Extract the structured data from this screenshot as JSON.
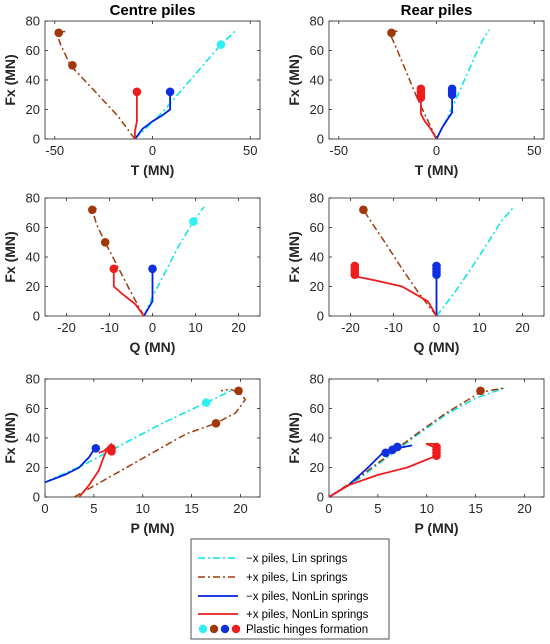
{
  "chart_data": [
    {
      "type": "line",
      "title": "Centre piles",
      "xlabel": "T (MN)",
      "ylabel": "Fx (MN)",
      "xlim": [
        -55,
        55
      ],
      "ylim": [
        0,
        80
      ],
      "xticks": [
        "-50",
        "0",
        "50"
      ],
      "yticks": [
        "0",
        "20",
        "40",
        "60",
        "80"
      ],
      "series": [
        {
          "name": "−x piles, Lin springs",
          "x": [
            -9,
            5,
            20,
            35,
            43
          ],
          "y": [
            0,
            18,
            41,
            64,
            74
          ],
          "markers": [
            [
              35,
              64
            ]
          ]
        },
        {
          "name": "+x piles, Lin springs",
          "x": [
            -9,
            -18,
            -30,
            -42,
            -47,
            -49,
            -44
          ],
          "y": [
            0,
            16,
            33,
            50,
            64,
            72,
            73
          ],
          "markers": [
            [
              -48,
              72
            ],
            [
              -41,
              50
            ]
          ]
        },
        {
          "name": "−x piles, NonLin springs",
          "x": [
            -9,
            -5,
            0,
            5,
            9,
            9,
            9
          ],
          "y": [
            0,
            7,
            12,
            16,
            20,
            27,
            32
          ],
          "markers": [
            [
              9,
              32
            ]
          ]
        },
        {
          "name": "+x piles, NonLin springs",
          "x": [
            -9,
            -9,
            -8,
            -8,
            -8,
            -8
          ],
          "y": [
            0,
            5,
            12,
            20,
            27,
            33
          ],
          "markers": [
            [
              -8,
              32
            ]
          ]
        }
      ]
    },
    {
      "type": "line",
      "title": "Rear piles",
      "xlabel": "T (MN)",
      "ylabel": "Fx (MN)",
      "xlim": [
        -55,
        55
      ],
      "ylim": [
        0,
        80
      ],
      "xticks": [
        "-50",
        "0",
        "50"
      ],
      "yticks": [
        "0",
        "20",
        "40",
        "60",
        "80"
      ],
      "series": [
        {
          "name": "−x piles, Lin springs",
          "x": [
            0,
            5,
            10,
            15,
            20,
            24,
            27
          ],
          "y": [
            0,
            13,
            27,
            42,
            57,
            68,
            74
          ],
          "markers": []
        },
        {
          "name": "+x piles, Lin springs",
          "x": [
            0,
            -5,
            -10,
            -15,
            -20,
            -24,
            -23,
            -20
          ],
          "y": [
            0,
            14,
            28,
            44,
            60,
            72,
            73,
            73
          ],
          "markers": [
            [
              -23,
              72
            ]
          ]
        },
        {
          "name": "−x piles, NonLin springs",
          "x": [
            0,
            3,
            6,
            8,
            8,
            8
          ],
          "y": [
            0,
            8,
            14,
            18,
            27,
            34
          ],
          "markers": [
            [
              8,
              30
            ],
            [
              8,
              32
            ],
            [
              8,
              34
            ]
          ]
        },
        {
          "name": "+x piles, NonLin springs",
          "x": [
            0,
            -3,
            -6,
            -8,
            -8,
            -8
          ],
          "y": [
            0,
            7,
            12,
            17,
            27,
            34
          ],
          "markers": [
            [
              -8,
              28
            ],
            [
              -8,
              30
            ],
            [
              -8,
              32
            ],
            [
              -8,
              34
            ]
          ]
        }
      ]
    },
    {
      "type": "line",
      "title": "",
      "xlabel": "Q (MN)",
      "ylabel": "Fx (MN)",
      "xlim": [
        -25,
        25
      ],
      "ylim": [
        0,
        80
      ],
      "xticks": [
        "-20",
        "-10",
        "0",
        "10",
        "20"
      ],
      "yticks": [
        "0",
        "20",
        "40",
        "60",
        "80"
      ],
      "series": [
        {
          "name": "−x piles, Lin springs",
          "x": [
            -2,
            0,
            3,
            6,
            9.5,
            12
          ],
          "y": [
            0,
            13,
            30,
            47,
            64,
            74
          ],
          "markers": [
            [
              9.5,
              64
            ]
          ]
        },
        {
          "name": "+x piles, Lin springs",
          "x": [
            -2,
            -5,
            -8,
            -11,
            -13,
            -14,
            -13
          ],
          "y": [
            0,
            16,
            33,
            50,
            62,
            72,
            73
          ],
          "markers": [
            [
              -14,
              72
            ],
            [
              -11,
              50
            ]
          ]
        },
        {
          "name": "−x piles, NonLin springs",
          "x": [
            -2,
            -1,
            0,
            0,
            0
          ],
          "y": [
            0,
            5,
            10,
            20,
            33
          ],
          "markers": [
            [
              0,
              32
            ]
          ]
        },
        {
          "name": "+x piles, NonLin springs",
          "x": [
            -2,
            -4,
            -7,
            -9,
            -9,
            -9
          ],
          "y": [
            0,
            8,
            15,
            20,
            27,
            33
          ],
          "markers": [
            [
              -9,
              32
            ]
          ]
        }
      ]
    },
    {
      "type": "line",
      "title": "",
      "xlabel": "Q (MN)",
      "ylabel": "Fx (MN)",
      "xlim": [
        -25,
        25
      ],
      "ylim": [
        0,
        80
      ],
      "xticks": [
        "-20",
        "-10",
        "0",
        "10",
        "20"
      ],
      "yticks": [
        "0",
        "20",
        "40",
        "60",
        "80"
      ],
      "series": [
        {
          "name": "−x piles, Lin springs",
          "x": [
            0,
            4,
            8,
            12,
            15,
            18
          ],
          "y": [
            0,
            15,
            32,
            50,
            64,
            74
          ],
          "markers": []
        },
        {
          "name": "+x piles, Lin springs",
          "x": [
            0,
            -4,
            -8,
            -12,
            -15,
            -17,
            -18
          ],
          "y": [
            0,
            15,
            32,
            50,
            63,
            72,
            73
          ],
          "markers": [
            [
              -17,
              72
            ]
          ]
        },
        {
          "name": "−x piles, NonLin springs",
          "x": [
            0,
            0,
            0,
            0
          ],
          "y": [
            0,
            10,
            20,
            34
          ],
          "markers": [
            [
              0,
              28
            ],
            [
              0,
              30
            ],
            [
              0,
              32
            ],
            [
              0,
              34
            ]
          ]
        },
        {
          "name": "+x piles, NonLin springs",
          "x": [
            0,
            -2,
            -8,
            -14,
            -19,
            -19,
            -19
          ],
          "y": [
            0,
            10,
            20,
            24,
            27,
            30,
            34
          ],
          "markers": [
            [
              -19,
              28
            ],
            [
              -19,
              30
            ],
            [
              -19,
              32
            ],
            [
              -19,
              34
            ]
          ]
        }
      ]
    },
    {
      "type": "line",
      "title": "",
      "xlabel": "P (MN)",
      "ylabel": "Fx (MN)",
      "xlim": [
        0,
        22
      ],
      "ylim": [
        0,
        80
      ],
      "xticks": [
        "0",
        "5",
        "10",
        "15",
        "20"
      ],
      "yticks": [
        "0",
        "20",
        "40",
        "60",
        "80"
      ],
      "series": [
        {
          "name": "−x piles, Lin springs",
          "x": [
            0,
            4,
            8,
            12,
            16.5,
            19
          ],
          "y": [
            10,
            22,
            36,
            50,
            64,
            72
          ],
          "markers": [
            [
              16.5,
              64
            ]
          ]
        },
        {
          "name": "+x piles, Lin springs",
          "x": [
            3,
            7,
            11,
            14.5,
            17.5,
            19.5,
            20.5,
            20,
            19,
            18
          ],
          "y": [
            0,
            15,
            30,
            43,
            50,
            57,
            66,
            70,
            73,
            72
          ],
          "markers": [
            [
              19.8,
              72
            ],
            [
              17.5,
              50
            ]
          ]
        },
        {
          "name": "−x piles, NonLin springs",
          "x": [
            0,
            2,
            3.5,
            4.5,
            5,
            5.5
          ],
          "y": [
            10,
            15,
            20,
            27,
            32,
            33
          ],
          "markers": [
            [
              5.2,
              33
            ]
          ]
        },
        {
          "name": "+x piles, NonLin springs",
          "x": [
            3.5,
            4.5,
            5.5,
            6,
            6.5,
            6.8,
            6.5,
            6,
            5.5
          ],
          "y": [
            0,
            8,
            18,
            27,
            34,
            36,
            34,
            31,
            30
          ],
          "markers": [
            [
              6.8,
              33
            ],
            [
              6.8,
              31
            ]
          ]
        }
      ]
    },
    {
      "type": "line",
      "title": "",
      "xlabel": "P (MN)",
      "ylabel": "Fx (MN)",
      "xlim": [
        0,
        22
      ],
      "ylim": [
        0,
        80
      ],
      "xticks": [
        "0",
        "5",
        "10",
        "15",
        "20"
      ],
      "yticks": [
        "0",
        "20",
        "40",
        "60",
        "80"
      ],
      "series": [
        {
          "name": "−x piles, Lin springs",
          "x": [
            0,
            3,
            6,
            9,
            12,
            15,
            18
          ],
          "y": [
            0,
            12,
            27,
            42,
            56,
            67,
            74
          ],
          "markers": []
        },
        {
          "name": "+x piles, Lin springs",
          "x": [
            0,
            3,
            6,
            9,
            12,
            15.5,
            18
          ],
          "y": [
            0,
            13,
            28,
            43,
            57,
            71,
            74
          ],
          "markers": [
            [
              15.5,
              72
            ]
          ]
        },
        {
          "name": "−x piles, NonLin springs",
          "x": [
            0,
            2,
            4,
            5.5,
            7,
            8.5
          ],
          "y": [
            0,
            8,
            20,
            30,
            33,
            35
          ],
          "markers": [
            [
              5.8,
              30
            ],
            [
              6.5,
              32
            ],
            [
              7,
              34
            ]
          ]
        },
        {
          "name": "+x piles, NonLin springs",
          "x": [
            0,
            2,
            5,
            8,
            11,
            11,
            10,
            11
          ],
          "y": [
            0,
            8,
            15,
            20,
            28,
            33,
            36,
            36
          ],
          "markers": [
            [
              11,
              28
            ],
            [
              11,
              30
            ],
            [
              11,
              32
            ],
            [
              11,
              34
            ]
          ]
        }
      ]
    }
  ],
  "legend": {
    "entries": [
      {
        "label": "−x piles, Lin springs",
        "color": "#00e5e5",
        "style": "dashdot"
      },
      {
        "label": "+x piles, Lin springs",
        "color": "#a03a0a",
        "style": "dashdot"
      },
      {
        "label": "−x piles, NonLin springs",
        "color": "#0022dd",
        "style": "solid"
      },
      {
        "label": "+x piles, NonLin springs",
        "color": "#ee1c1c",
        "style": "solid"
      },
      {
        "label": "Plastic hinges formation",
        "color": "",
        "style": "markers"
      }
    ],
    "marker_colors": [
      "#30f0f0",
      "#a0380a",
      "#1030e0",
      "#ee1c1c"
    ]
  },
  "colors": {
    "neg_lin": "#00e5e5",
    "pos_lin": "#a03a0a",
    "neg_nonlin": "#0022dd",
    "pos_nonlin": "#ee1c1c"
  }
}
